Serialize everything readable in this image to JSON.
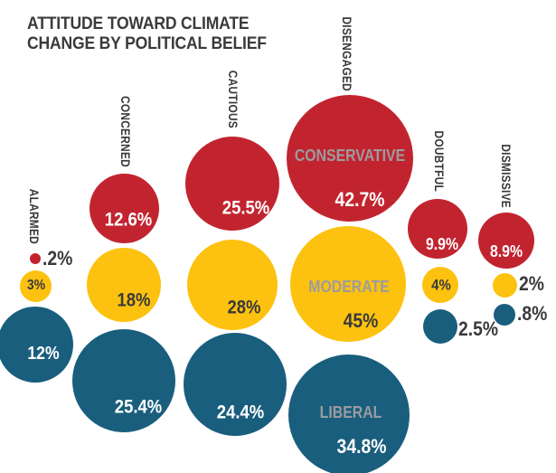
{
  "title": {
    "line1": "ATTITUDE TOWARD CLIMATE",
    "line2": "CHANGE BY POLITICAL BELIEF"
  },
  "colors": {
    "conservative": "#C2242F",
    "moderate": "#FDC20F",
    "liberal": "#1A5E7D",
    "text_dark": "#3A393B",
    "text_gray": "#9B9C9F",
    "text_light": "#FFFFFF"
  },
  "columns": [
    {
      "id": "alarmed",
      "label": "ALARMED",
      "bubbles": [
        {
          "group": "conservative",
          "label": ".2%"
        },
        {
          "group": "moderate",
          "label": "3%"
        },
        {
          "group": "liberal",
          "label": "12%"
        }
      ]
    },
    {
      "id": "concerned",
      "label": "CONCERNED",
      "bubbles": [
        {
          "group": "conservative",
          "label": "12.6%"
        },
        {
          "group": "moderate",
          "label": "18%"
        },
        {
          "group": "liberal",
          "label": "25.4%"
        }
      ]
    },
    {
      "id": "cautious",
      "label": "CAUTIOUS",
      "bubbles": [
        {
          "group": "conservative",
          "label": "25.5%"
        },
        {
          "group": "moderate",
          "label": "28%"
        },
        {
          "group": "liberal",
          "label": "24.4%"
        }
      ]
    },
    {
      "id": "disengaged",
      "label": "DISENGAGED",
      "bubbles": [
        {
          "group": "conservative",
          "label": "42.7%",
          "name": "CONSERVATIVE"
        },
        {
          "group": "moderate",
          "label": "45%",
          "name": "MODERATE"
        },
        {
          "group": "liberal",
          "label": "34.8%",
          "name": "LIBERAL"
        }
      ]
    },
    {
      "id": "doubtful",
      "label": "DOUBTFUL",
      "bubbles": [
        {
          "group": "conservative",
          "label": "9.9%"
        },
        {
          "group": "moderate",
          "label": "4%"
        },
        {
          "group": "liberal",
          "label": "2.5%"
        }
      ]
    },
    {
      "id": "dismissive",
      "label": "DISMISSIVE",
      "bubbles": [
        {
          "group": "conservative",
          "label": "8.9%"
        },
        {
          "group": "moderate",
          "label": "2%"
        },
        {
          "group": "liberal",
          "label": ".8%"
        }
      ]
    }
  ],
  "chart_data": {
    "type": "bubble",
    "title": "ATTITUDE TOWARD CLIMATE CHANGE BY POLITICAL BELIEF",
    "categories": [
      "ALARMED",
      "CONCERNED",
      "CAUTIOUS",
      "DISENGAGED",
      "DOUBTFUL",
      "DISMISSIVE"
    ],
    "series": [
      {
        "name": "CONSERVATIVE",
        "color": "#C2242F",
        "values": [
          0.2,
          12.6,
          25.5,
          42.7,
          9.9,
          8.9
        ]
      },
      {
        "name": "MODERATE",
        "color": "#FDC20F",
        "values": [
          3,
          18,
          28,
          45,
          4,
          2
        ]
      },
      {
        "name": "LIBERAL",
        "color": "#1A5E7D",
        "values": [
          12,
          25.4,
          24.4,
          34.8,
          2.5,
          0.8
        ]
      }
    ],
    "value_unit": "%",
    "encoding": "bubble area proportional to percentage; columns = attitude segments, rows/colors = political belief",
    "legend_position": "none",
    "grid": false
  }
}
